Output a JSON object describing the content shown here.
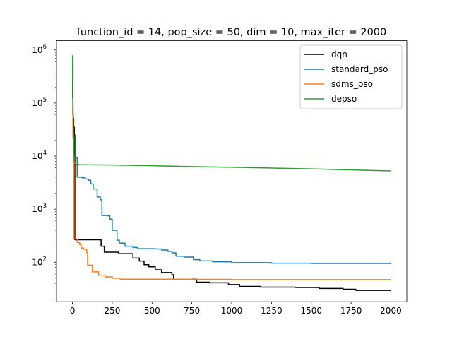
{
  "chart_data": {
    "type": "line",
    "title": "function_id = 14, pop_size = 50, dim = 10, max_iter = 2000",
    "xlabel": "",
    "ylabel": "",
    "yscale": "log",
    "xlim": [
      -100,
      2100
    ],
    "ylim": [
      18,
      1500000
    ],
    "xticks": [
      0,
      250,
      500,
      750,
      1000,
      1250,
      1500,
      1750,
      2000
    ],
    "xtick_labels": [
      "0",
      "250",
      "500",
      "750",
      "1000",
      "1250",
      "1500",
      "1750",
      "2000"
    ],
    "yticks": [
      100,
      1000,
      10000,
      100000,
      1000000
    ],
    "ytick_labels": [
      [
        "10",
        "2"
      ],
      [
        "10",
        "3"
      ],
      [
        "10",
        "4"
      ],
      [
        "10",
        "5"
      ],
      [
        "10",
        "6"
      ]
    ],
    "grid": false,
    "legend_position": "top-right",
    "series": [
      {
        "name": "dqn",
        "color": "#000000",
        "step": true,
        "points": [
          [
            0,
            780000
          ],
          [
            1,
            130000
          ],
          [
            3,
            52000
          ],
          [
            8,
            35000
          ],
          [
            12,
            25000
          ],
          [
            15,
            265
          ],
          [
            60,
            265
          ],
          [
            120,
            265
          ],
          [
            175,
            265
          ],
          [
            180,
            200
          ],
          [
            200,
            155
          ],
          [
            290,
            145
          ],
          [
            380,
            120
          ],
          [
            420,
            105
          ],
          [
            450,
            90
          ],
          [
            480,
            82
          ],
          [
            520,
            72
          ],
          [
            560,
            64
          ],
          [
            625,
            58
          ],
          [
            635,
            48
          ],
          [
            770,
            48
          ],
          [
            780,
            42
          ],
          [
            860,
            41
          ],
          [
            980,
            38
          ],
          [
            1050,
            35
          ],
          [
            1180,
            34
          ],
          [
            1400,
            33.5
          ],
          [
            1550,
            32
          ],
          [
            1700,
            31
          ],
          [
            1780,
            29.5
          ],
          [
            2000,
            29.5
          ]
        ]
      },
      {
        "name": "standard_pso",
        "color": "#1f77b4",
        "step": true,
        "points": [
          [
            0,
            600000
          ],
          [
            2,
            60000
          ],
          [
            5,
            21000
          ],
          [
            10,
            9300
          ],
          [
            30,
            4000
          ],
          [
            60,
            3900
          ],
          [
            80,
            3700
          ],
          [
            100,
            3500
          ],
          [
            115,
            3000
          ],
          [
            130,
            2400
          ],
          [
            155,
            1700
          ],
          [
            175,
            1500
          ],
          [
            185,
            760
          ],
          [
            220,
            750
          ],
          [
            235,
            650
          ],
          [
            250,
            400
          ],
          [
            280,
            260
          ],
          [
            295,
            230
          ],
          [
            330,
            200
          ],
          [
            380,
            190
          ],
          [
            410,
            180
          ],
          [
            520,
            178
          ],
          [
            560,
            170
          ],
          [
            600,
            160
          ],
          [
            625,
            150
          ],
          [
            650,
            130
          ],
          [
            700,
            125
          ],
          [
            760,
            112
          ],
          [
            800,
            106
          ],
          [
            880,
            102
          ],
          [
            1000,
            98
          ],
          [
            1250,
            96
          ],
          [
            1500,
            95
          ],
          [
            2000,
            92
          ]
        ]
      },
      {
        "name": "sdms_pso",
        "color": "#ff7f0e",
        "step": true,
        "points": [
          [
            0,
            500000
          ],
          [
            3,
            22000
          ],
          [
            6,
            8000
          ],
          [
            10,
            275
          ],
          [
            30,
            235
          ],
          [
            45,
            215
          ],
          [
            55,
            185
          ],
          [
            70,
            175
          ],
          [
            90,
            150
          ],
          [
            95,
            88
          ],
          [
            125,
            66
          ],
          [
            165,
            57
          ],
          [
            205,
            53
          ],
          [
            250,
            50
          ],
          [
            300,
            48
          ],
          [
            500,
            48
          ],
          [
            750,
            47.5
          ],
          [
            1000,
            47
          ],
          [
            2000,
            47
          ]
        ]
      },
      {
        "name": "depso",
        "color": "#2ca02c",
        "step": false,
        "points": [
          [
            0,
            790000
          ],
          [
            1,
            550000
          ],
          [
            3,
            120000
          ],
          [
            6,
            35000
          ],
          [
            9,
            13000
          ],
          [
            12,
            7800
          ],
          [
            20,
            7000
          ],
          [
            50,
            6900
          ],
          [
            100,
            6850
          ],
          [
            250,
            6800
          ],
          [
            500,
            6600
          ],
          [
            750,
            6350
          ],
          [
            1000,
            6150
          ],
          [
            1250,
            5950
          ],
          [
            1500,
            5750
          ],
          [
            1750,
            5500
          ],
          [
            2000,
            5250
          ]
        ]
      }
    ]
  }
}
